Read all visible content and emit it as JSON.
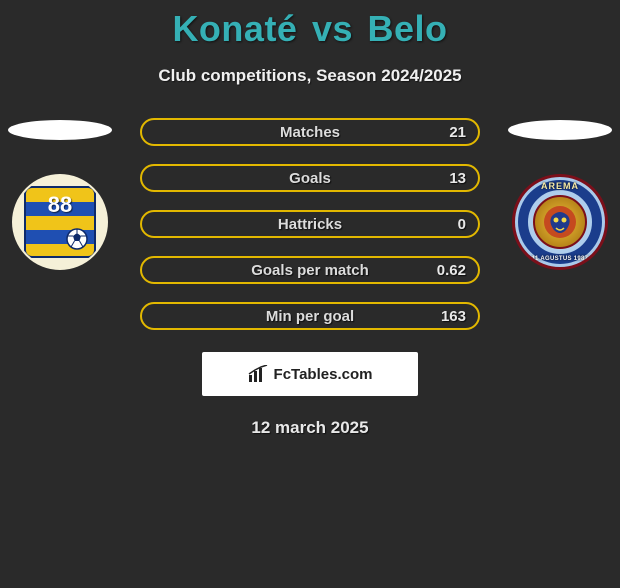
{
  "title": {
    "player1": "Konaté",
    "vs": "vs",
    "player2": "Belo",
    "player1_color": "#35b0b5",
    "player2_color": "#35b0b5"
  },
  "subtitle": "Club competitions, Season 2024/2025",
  "ellipse_colors": {
    "left": "#ffffff",
    "right": "#ffffff"
  },
  "stat_border_color": "#e2b800",
  "stats": [
    {
      "label": "Matches",
      "value": "21"
    },
    {
      "label": "Goals",
      "value": "13"
    },
    {
      "label": "Hattricks",
      "value": "0"
    },
    {
      "label": "Goals per match",
      "value": "0.62"
    },
    {
      "label": "Min per goal",
      "value": "163"
    }
  ],
  "badges": {
    "left": {
      "name": "barito-putera",
      "number": "88"
    },
    "right": {
      "name": "arema",
      "top_text": "AREMA",
      "bottom_text": "11 AGUSTUS 1987"
    }
  },
  "brand": {
    "text": "FcTables.com",
    "icon_name": "chart-icon"
  },
  "date": "12 march 2025",
  "colors": {
    "background": "#2a2a2a",
    "text": "#ffffff",
    "muted": "#dcdcdc"
  }
}
